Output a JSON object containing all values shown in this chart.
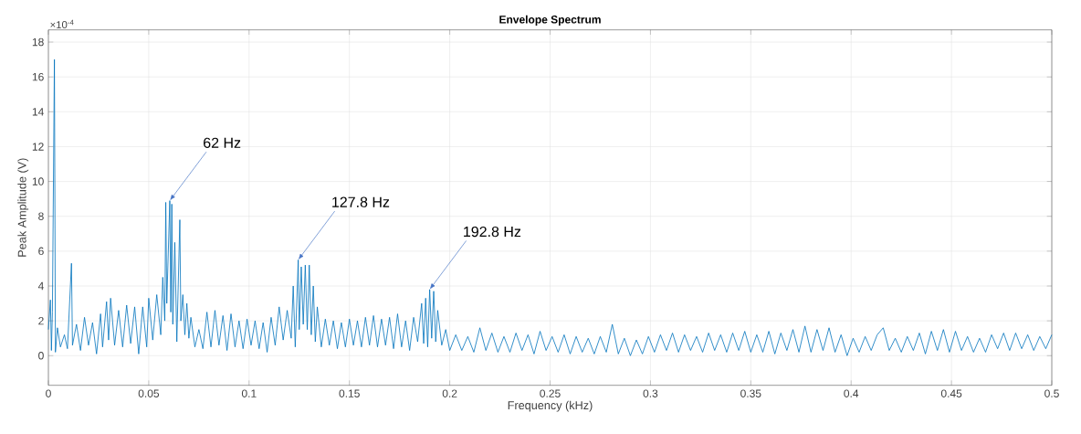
{
  "chart_data": {
    "type": "line",
    "title": "Envelope Spectrum",
    "xlabel": "Frequency (kHz)",
    "ylabel": "Peak Amplitude (V)",
    "xlim": [
      0,
      0.5
    ],
    "ylim": [
      -1.7,
      18.7
    ],
    "xticks": [
      0,
      0.05,
      0.1,
      0.15,
      0.2,
      0.25,
      0.3,
      0.35,
      0.4,
      0.45,
      0.5
    ],
    "yticks": [
      0,
      2,
      4,
      6,
      8,
      10,
      12,
      14,
      16,
      18
    ],
    "grid": true,
    "annotations": [
      "×10$^{-4}$",
      {
        "text": "62 Hz",
        "x": 0.0605,
        "y": 8.9
      },
      {
        "text": "127.8 Hz",
        "x": 0.1245,
        "y": 5.5
      },
      {
        "text": "192.8 Hz",
        "x": 0.19,
        "y": 3.8
      }
    ],
    "series": [
      {
        "color": "#0072bd",
        "x": [
          0,
          0.001,
          0.0015,
          0.002,
          0.003,
          0.0035,
          0.0045,
          0.006,
          0.008,
          0.0095,
          0.0115,
          0.012,
          0.014,
          0.016,
          0.018,
          0.02,
          0.022,
          0.024,
          0.026,
          0.027,
          0.029,
          0.03,
          0.031,
          0.033,
          0.035,
          0.037,
          0.039,
          0.041,
          0.043,
          0.045,
          0.047,
          0.049,
          0.05,
          0.052,
          0.054,
          0.056,
          0.057,
          0.058,
          0.0585,
          0.059,
          0.0605,
          0.061,
          0.0615,
          0.062,
          0.063,
          0.064,
          0.0655,
          0.066,
          0.067,
          0.068,
          0.069,
          0.07,
          0.071,
          0.073,
          0.075,
          0.077,
          0.079,
          0.081,
          0.083,
          0.085,
          0.087,
          0.089,
          0.091,
          0.093,
          0.095,
          0.097,
          0.099,
          0.101,
          0.103,
          0.105,
          0.107,
          0.109,
          0.111,
          0.113,
          0.115,
          0.117,
          0.119,
          0.121,
          0.122,
          0.123,
          0.1245,
          0.125,
          0.126,
          0.127,
          0.128,
          0.129,
          0.13,
          0.131,
          0.132,
          0.133,
          0.134,
          0.136,
          0.138,
          0.14,
          0.142,
          0.144,
          0.146,
          0.148,
          0.15,
          0.152,
          0.154,
          0.156,
          0.158,
          0.16,
          0.162,
          0.164,
          0.166,
          0.168,
          0.17,
          0.172,
          0.174,
          0.176,
          0.178,
          0.18,
          0.182,
          0.184,
          0.186,
          0.187,
          0.188,
          0.189,
          0.19,
          0.191,
          0.192,
          0.193,
          0.194,
          0.196,
          0.198,
          0.2,
          0.203,
          0.206,
          0.209,
          0.212,
          0.215,
          0.218,
          0.221,
          0.224,
          0.227,
          0.23,
          0.233,
          0.236,
          0.239,
          0.242,
          0.245,
          0.248,
          0.251,
          0.254,
          0.257,
          0.26,
          0.263,
          0.266,
          0.269,
          0.272,
          0.275,
          0.278,
          0.281,
          0.284,
          0.287,
          0.29,
          0.293,
          0.296,
          0.299,
          0.302,
          0.305,
          0.308,
          0.311,
          0.314,
          0.317,
          0.32,
          0.323,
          0.326,
          0.329,
          0.332,
          0.335,
          0.338,
          0.341,
          0.344,
          0.347,
          0.35,
          0.353,
          0.356,
          0.359,
          0.362,
          0.365,
          0.368,
          0.371,
          0.374,
          0.377,
          0.38,
          0.383,
          0.386,
          0.389,
          0.392,
          0.395,
          0.398,
          0.401,
          0.404,
          0.407,
          0.41,
          0.413,
          0.416,
          0.419,
          0.422,
          0.425,
          0.428,
          0.431,
          0.434,
          0.437,
          0.44,
          0.443,
          0.446,
          0.449,
          0.452,
          0.455,
          0.458,
          0.461,
          0.464,
          0.467,
          0.47,
          0.473,
          0.476,
          0.479,
          0.482,
          0.485,
          0.488,
          0.491,
          0.494,
          0.497,
          0.5
        ],
        "values": [
          1.5,
          3.2,
          0.3,
          2.5,
          17.0,
          0.2,
          1.6,
          0.5,
          1.2,
          0.4,
          5.3,
          0.6,
          1.8,
          0.3,
          2.2,
          0.6,
          1.9,
          0.1,
          2.4,
          0.5,
          3.1,
          0.9,
          3.3,
          0.6,
          2.6,
          0.5,
          2.9,
          0.7,
          2.8,
          0.1,
          2.8,
          0.5,
          3.3,
          0.9,
          3.5,
          1.2,
          4.5,
          2.0,
          8.8,
          3.0,
          8.9,
          2.5,
          8.7,
          1.8,
          6.5,
          0.8,
          7.8,
          2.0,
          3.5,
          1.2,
          3.0,
          1.0,
          2.2,
          0.5,
          1.5,
          0.4,
          2.5,
          0.5,
          2.6,
          0.6,
          2.3,
          0.3,
          2.4,
          0.5,
          2.0,
          0.4,
          2.1,
          0.6,
          2.0,
          0.4,
          1.9,
          0.2,
          2.2,
          0.6,
          2.8,
          0.9,
          2.6,
          1.0,
          4.0,
          0.5,
          5.5,
          1.5,
          5.1,
          1.8,
          5.2,
          1.5,
          5.2,
          1.2,
          4.0,
          0.8,
          2.8,
          0.5,
          2.1,
          0.6,
          2.0,
          0.4,
          1.9,
          0.5,
          2.1,
          0.6,
          2.0,
          0.5,
          2.2,
          0.6,
          2.3,
          0.5,
          2.1,
          0.6,
          2.2,
          0.4,
          2.4,
          0.5,
          2.0,
          0.3,
          2.2,
          0.8,
          3.0,
          0.7,
          3.3,
          0.5,
          3.8,
          1.0,
          3.7,
          0.8,
          2.6,
          0.6,
          1.5,
          0.3,
          1.2,
          0.3,
          1.1,
          0.2,
          1.6,
          0.3,
          1.3,
          0.2,
          1.1,
          0.2,
          1.3,
          0.3,
          1.2,
          0.1,
          1.4,
          0.3,
          1.1,
          0.2,
          1.2,
          0.1,
          1.1,
          0.2,
          1.0,
          0.1,
          1.1,
          0.2,
          1.8,
          0.1,
          1.0,
          0.0,
          0.9,
          0.1,
          1.1,
          0.2,
          1.2,
          0.3,
          1.3,
          0.2,
          1.2,
          0.3,
          1.1,
          0.2,
          1.3,
          0.3,
          1.2,
          0.2,
          1.3,
          0.3,
          1.4,
          0.2,
          1.2,
          0.2,
          1.4,
          0.1,
          1.3,
          0.3,
          1.5,
          0.2,
          1.7,
          0.2,
          1.5,
          0.3,
          1.6,
          0.2,
          1.2,
          0.0,
          1.0,
          0.2,
          1.1,
          0.3,
          1.2,
          1.6,
          0.3,
          1.0,
          0.2,
          1.1,
          0.3,
          1.3,
          0.1,
          1.4,
          0.3,
          1.5,
          0.2,
          1.4,
          0.3,
          1.1,
          0.2,
          1.0,
          0.2,
          1.2,
          0.4,
          1.3,
          0.3,
          1.3,
          0.4,
          1.2,
          0.3,
          1.1,
          0.4,
          1.2
        ]
      }
    ]
  }
}
